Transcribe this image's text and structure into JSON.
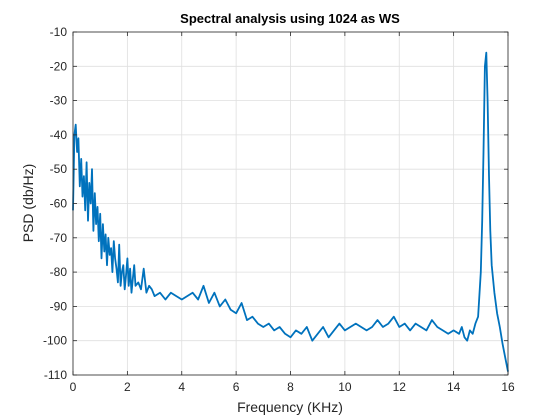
{
  "chart_data": {
    "type": "line",
    "title": "Spectral analysis using 1024 as WS",
    "xlabel": "Frequency (KHz)",
    "ylabel": "PSD (db/Hz)",
    "xlim": [
      0,
      16
    ],
    "ylim": [
      -110,
      -10
    ],
    "xticks": [
      "0",
      "2",
      "4",
      "6",
      "8",
      "10",
      "12",
      "14",
      "16"
    ],
    "yticks": [
      "-10",
      "-20",
      "-30",
      "-40",
      "-50",
      "-60",
      "-70",
      "-80",
      "-90",
      "-100",
      "-110"
    ],
    "grid": true,
    "line_color": "#0072BD",
    "series": [
      {
        "x": [
          0,
          0.05,
          0.1,
          0.15,
          0.2,
          0.25,
          0.3,
          0.35,
          0.4,
          0.45,
          0.5,
          0.55,
          0.6,
          0.65,
          0.7,
          0.75,
          0.8,
          0.85,
          0.9,
          0.95,
          1.0,
          1.05,
          1.1,
          1.15,
          1.2,
          1.25,
          1.3,
          1.35,
          1.4,
          1.45,
          1.5,
          1.55,
          1.6,
          1.65,
          1.7,
          1.75,
          1.8,
          1.85,
          1.9,
          1.95,
          2.0,
          2.05,
          2.1,
          2.15,
          2.2,
          2.25,
          2.3,
          2.4,
          2.5,
          2.6,
          2.7,
          2.8,
          2.9,
          3.0,
          3.2,
          3.4,
          3.6,
          3.8,
          4.0,
          4.2,
          4.4,
          4.6,
          4.8,
          5.0,
          5.2,
          5.4,
          5.6,
          5.8,
          6.0,
          6.2,
          6.4,
          6.6,
          6.8,
          7.0,
          7.2,
          7.4,
          7.6,
          7.8,
          8.0,
          8.2,
          8.4,
          8.6,
          8.8,
          9.0,
          9.2,
          9.4,
          9.6,
          9.8,
          10.0,
          10.2,
          10.4,
          10.6,
          10.8,
          11.0,
          11.2,
          11.4,
          11.6,
          11.8,
          12.0,
          12.2,
          12.4,
          12.6,
          12.8,
          13.0,
          13.2,
          13.4,
          13.6,
          13.8,
          14.0,
          14.2,
          14.3,
          14.4,
          14.5,
          14.6,
          14.7,
          14.8,
          14.9,
          15.0,
          15.05,
          15.1,
          15.15,
          15.2,
          15.25,
          15.3,
          15.35,
          15.4,
          15.5,
          15.6,
          15.7,
          15.8,
          15.9,
          16.0
        ],
        "y": [
          -62,
          -40,
          -37,
          -45,
          -41,
          -55,
          -47,
          -58,
          -52,
          -62,
          -48,
          -65,
          -54,
          -60,
          -50,
          -68,
          -57,
          -66,
          -61,
          -71,
          -63,
          -76,
          -66,
          -74,
          -69,
          -78,
          -70,
          -75,
          -73,
          -80,
          -71,
          -76,
          -79,
          -83,
          -72,
          -84,
          -80,
          -78,
          -85,
          -81,
          -76,
          -84,
          -79,
          -86,
          -82,
          -78,
          -84,
          -83,
          -85,
          -79,
          -86,
          -84,
          -85,
          -87,
          -86,
          -88,
          -86,
          -87,
          -88,
          -87,
          -86,
          -88,
          -84,
          -89,
          -86,
          -90,
          -88,
          -91,
          -92,
          -89,
          -94,
          -93,
          -95,
          -96,
          -95,
          -97,
          -96,
          -98,
          -99,
          -97,
          -98,
          -96,
          -100,
          -98,
          -96,
          -99,
          -97,
          -95,
          -97,
          -96,
          -95,
          -96,
          -97,
          -96,
          -94,
          -96,
          -95,
          -93,
          -96,
          -95,
          -97,
          -95,
          -96,
          -97,
          -94,
          -96,
          -97,
          -98,
          -97,
          -98,
          -96,
          -99,
          -100,
          -97,
          -98,
          -95,
          -93,
          -80,
          -65,
          -45,
          -20,
          -16,
          -30,
          -52,
          -68,
          -78,
          -86,
          -92,
          -96,
          -101,
          -105,
          -109
        ]
      }
    ]
  }
}
